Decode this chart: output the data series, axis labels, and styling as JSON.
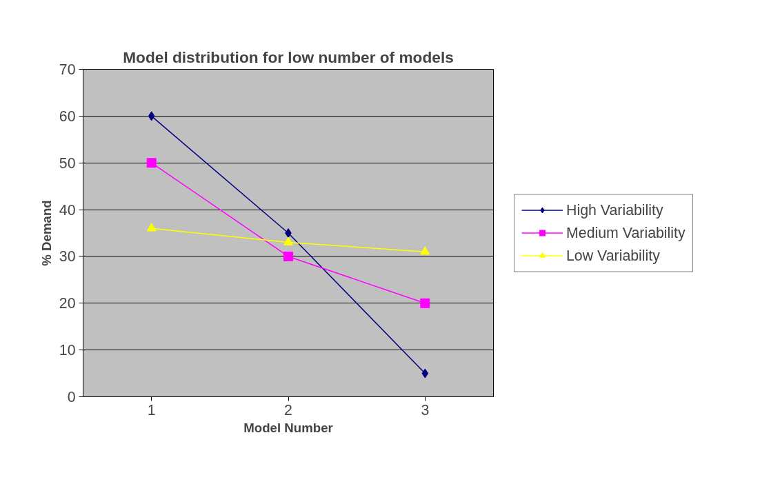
{
  "chart_data": {
    "type": "line",
    "title": "Model distribution for low number of models",
    "xlabel": "Model Number",
    "ylabel": "% Demand",
    "categories": [
      "1",
      "2",
      "3"
    ],
    "series": [
      {
        "name": "High Variability",
        "color": "#000080",
        "marker": "diamond",
        "values": [
          60,
          35,
          5
        ]
      },
      {
        "name": "Medium Variability",
        "color": "#ff00ff",
        "marker": "square",
        "values": [
          50,
          30,
          20
        ]
      },
      {
        "name": "Low Variability",
        "color": "#ffff00",
        "marker": "triangle",
        "values": [
          36,
          33,
          31
        ]
      }
    ],
    "ylim": [
      0,
      70
    ],
    "yticks": [
      0,
      10,
      20,
      30,
      40,
      50,
      60,
      70
    ],
    "grid": "y",
    "legend": "right",
    "line_style": "solid"
  }
}
